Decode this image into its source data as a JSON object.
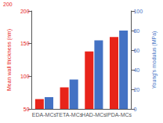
{
  "chart_data": {
    "type": "bar",
    "categories": [
      "EDA-MCs",
      "TETA-MCs",
      "HAD-MCs",
      "IPDA-MCs"
    ],
    "series": [
      {
        "color": "#e8241a",
        "values": [
          65,
          83,
          138,
          160
        ]
      },
      {
        "color": "#4472c4",
        "values": [
          12,
          30,
          70,
          80
        ],
        "axis": "y2"
      }
    ],
    "ylabel": "Mean wall thickness (nm)",
    "y2label": "Young's modulus (MPa)",
    "ylim": [
      50,
      200
    ],
    "yticks": [
      50,
      100,
      150,
      200
    ],
    "y2lim": [
      0,
      100
    ],
    "y2ticks": [
      0,
      20,
      40,
      60,
      80,
      100
    ],
    "grid": false,
    "annotations": [
      {
        "text": "200",
        "color": "#e8241a"
      }
    ]
  }
}
